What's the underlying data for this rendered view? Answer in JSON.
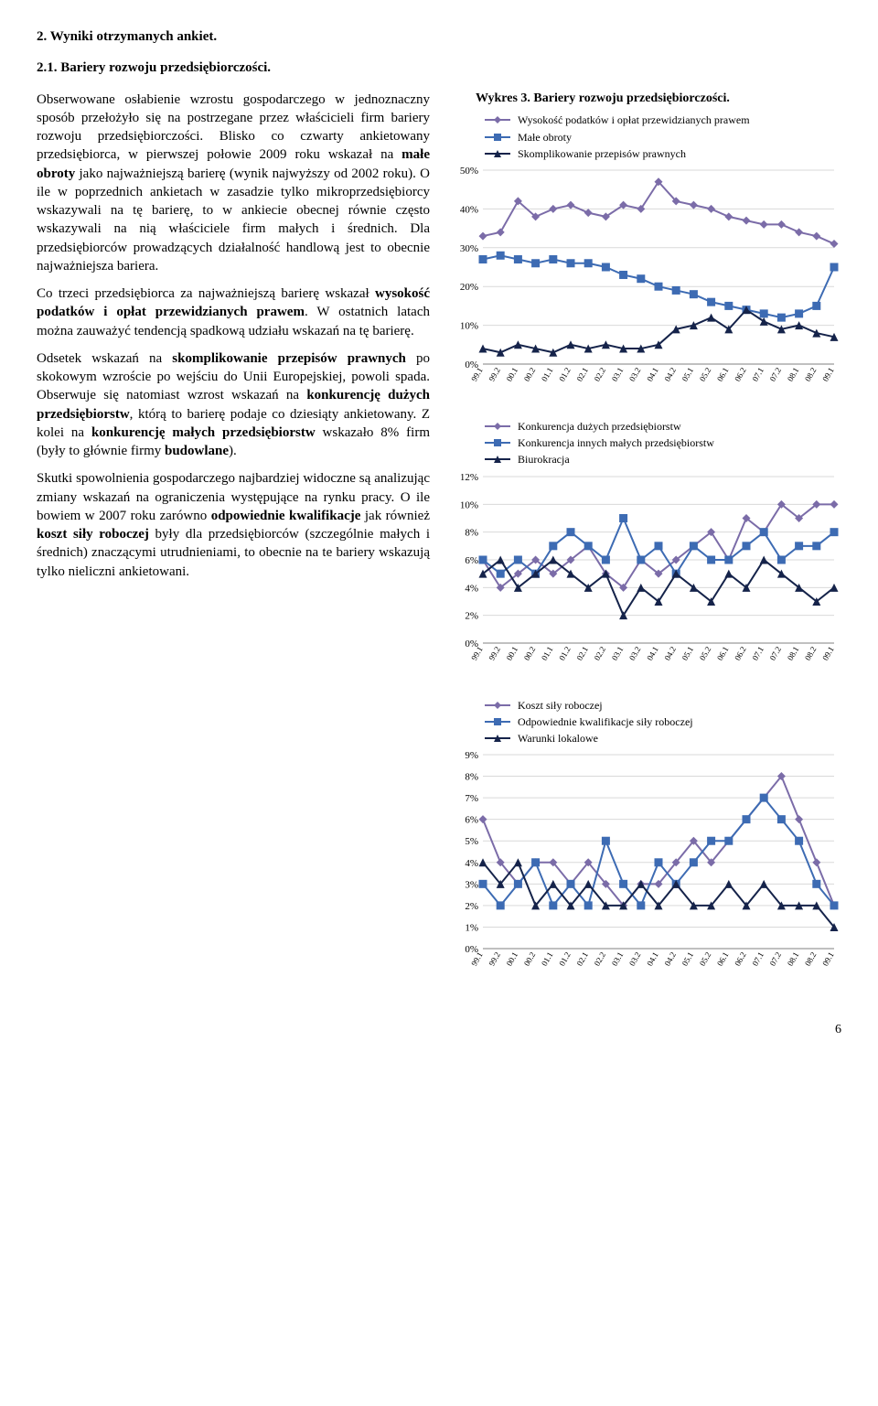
{
  "heading": "2. Wyniki otrzymanych ankiet.",
  "subheading": "2.1. Bariery rozwoju przedsiębiorczości.",
  "paragraphs": {
    "p1": "Obserwowane osłabienie wzrostu gospodarczego w jednoznaczny sposób przełożyło się na postrzegane przez właścicieli firm bariery rozwoju przedsiębiorczości. Blisko co czwarty ankietowany przedsiębiorca, w pierwszej połowie 2009 roku wskazał na małe obroty jako najważniejszą barierę (wynik najwyższy od 2002 roku). O ile w poprzednich ankietach w zasadzie tylko mikroprzedsiębiorcy wskazywali na tę barierę, to w ankiecie obecnej równie często wskazywali na nią właściciele firm małych i średnich. Dla przedsiębiorców prowadzących działalność handlową jest to obecnie najważniejsza bariera.",
    "p2": "Co trzeci przedsiębiorca za najważniejszą barierę wskazał wysokość podatków i opłat przewidzianych prawem. W ostatnich latach można zauważyć tendencją spadkową udziału wskazań na tę barierę.",
    "p3": "Odsetek wskazań na skomplikowanie przepisów prawnych po skokowym wzroście po wejściu do Unii Europejskiej, powoli spada. Obserwuje się natomiast wzrost wskazań na konkurencję dużych przedsiębiorstw, którą to barierę podaje co dziesiąty ankietowany. Z kolei na konkurencję małych przedsiębiorstw wskazało 8% firm (były to głównie firmy budowlane).",
    "p4": "Skutki spowolnienia gospodarczego najbardziej widoczne są analizując zmiany wskazań na ograniczenia występujące na rynku pracy. O ile bowiem w 2007 roku zarówno odpowiednie kwalifikacje jak również koszt siły roboczej były dla przedsiębiorców (szczególnie małych i średnich) znaczącymi utrudnieniami, to obecnie na te bariery wskazują tylko nieliczni ankietowani."
  },
  "chart_common": {
    "categories": [
      "99.1",
      "99.2",
      "00.1",
      "00.2",
      "01.1",
      "01.2",
      "02.1",
      "02.2",
      "03.1",
      "03.2",
      "04.1",
      "04.2",
      "05.1",
      "05.2",
      "06.1",
      "06.2",
      "07.1",
      "07.2",
      "08.1",
      "08.2",
      "09.1"
    ],
    "colors": {
      "purple": "#7b6ca8",
      "blue": "#3d6bb3",
      "navy": "#15234a",
      "grid": "#d9d9d9",
      "axis": "#808080",
      "bg": "#ffffff",
      "text": "#000000"
    },
    "marker_size": 4.5,
    "line_width": 2
  },
  "chart1": {
    "title": "Wykres 3. Bariery rozwoju przedsiębiorczości.",
    "legend": [
      {
        "marker": "diamond",
        "color_key": "purple",
        "label": "Wysokość podatków i opłat przewidzianych prawem"
      },
      {
        "marker": "square",
        "color_key": "blue",
        "label": "Małe obroty"
      },
      {
        "marker": "triangle",
        "color_key": "navy",
        "label": "Skomplikowanie przepisów prawnych"
      }
    ],
    "ymin": 0,
    "ymax": 50,
    "ystep": 10,
    "ysuffix": "%",
    "series": {
      "purple": [
        33,
        34,
        42,
        38,
        40,
        41,
        39,
        38,
        41,
        40,
        47,
        42,
        41,
        40,
        38,
        37,
        36,
        36,
        34,
        33,
        31
      ],
      "blue": [
        27,
        28,
        27,
        26,
        27,
        26,
        26,
        25,
        23,
        22,
        20,
        19,
        18,
        16,
        15,
        14,
        13,
        12,
        13,
        15,
        25
      ],
      "navy": [
        4,
        3,
        5,
        4,
        3,
        5,
        4,
        5,
        4,
        4,
        5,
        9,
        10,
        12,
        9,
        14,
        11,
        9,
        10,
        8,
        7
      ]
    }
  },
  "chart2": {
    "legend": [
      {
        "marker": "diamond",
        "color_key": "purple",
        "label": "Konkurencja dużych przedsiębiorstw"
      },
      {
        "marker": "square",
        "color_key": "blue",
        "label": "Konkurencja innych małych przedsiębiorstw"
      },
      {
        "marker": "triangle",
        "color_key": "navy",
        "label": "Biurokracja"
      }
    ],
    "ymin": 0,
    "ymax": 12,
    "ystep": 2,
    "ysuffix": "%",
    "series": {
      "purple": [
        6,
        4,
        5,
        6,
        5,
        6,
        7,
        5,
        4,
        6,
        5,
        6,
        7,
        8,
        6,
        9,
        8,
        10,
        9,
        10,
        10
      ],
      "blue": [
        6,
        5,
        6,
        5,
        7,
        8,
        7,
        6,
        9,
        6,
        7,
        5,
        7,
        6,
        6,
        7,
        8,
        6,
        7,
        7,
        8
      ],
      "navy": [
        5,
        6,
        4,
        5,
        6,
        5,
        4,
        5,
        2,
        4,
        3,
        5,
        4,
        3,
        5,
        4,
        6,
        5,
        4,
        3,
        4
      ]
    }
  },
  "chart3": {
    "legend": [
      {
        "marker": "diamond",
        "color_key": "purple",
        "label": "Koszt siły roboczej"
      },
      {
        "marker": "square",
        "color_key": "blue",
        "label": "Odpowiednie kwalifikacje siły roboczej"
      },
      {
        "marker": "triangle",
        "color_key": "navy",
        "label": "Warunki lokalowe"
      }
    ],
    "ymin": 0,
    "ymax": 9,
    "ystep": 1,
    "ysuffix": "%",
    "series": {
      "purple": [
        6,
        4,
        3,
        4,
        4,
        3,
        4,
        3,
        2,
        3,
        3,
        4,
        5,
        4,
        5,
        6,
        7,
        8,
        6,
        4,
        2
      ],
      "blue": [
        3,
        2,
        3,
        4,
        2,
        3,
        2,
        5,
        3,
        2,
        4,
        3,
        4,
        5,
        5,
        6,
        7,
        6,
        5,
        3,
        2
      ],
      "navy": [
        4,
        3,
        4,
        2,
        3,
        2,
        3,
        2,
        2,
        3,
        2,
        3,
        2,
        2,
        3,
        2,
        3,
        2,
        2,
        2,
        1
      ]
    }
  },
  "pagenum": "6"
}
